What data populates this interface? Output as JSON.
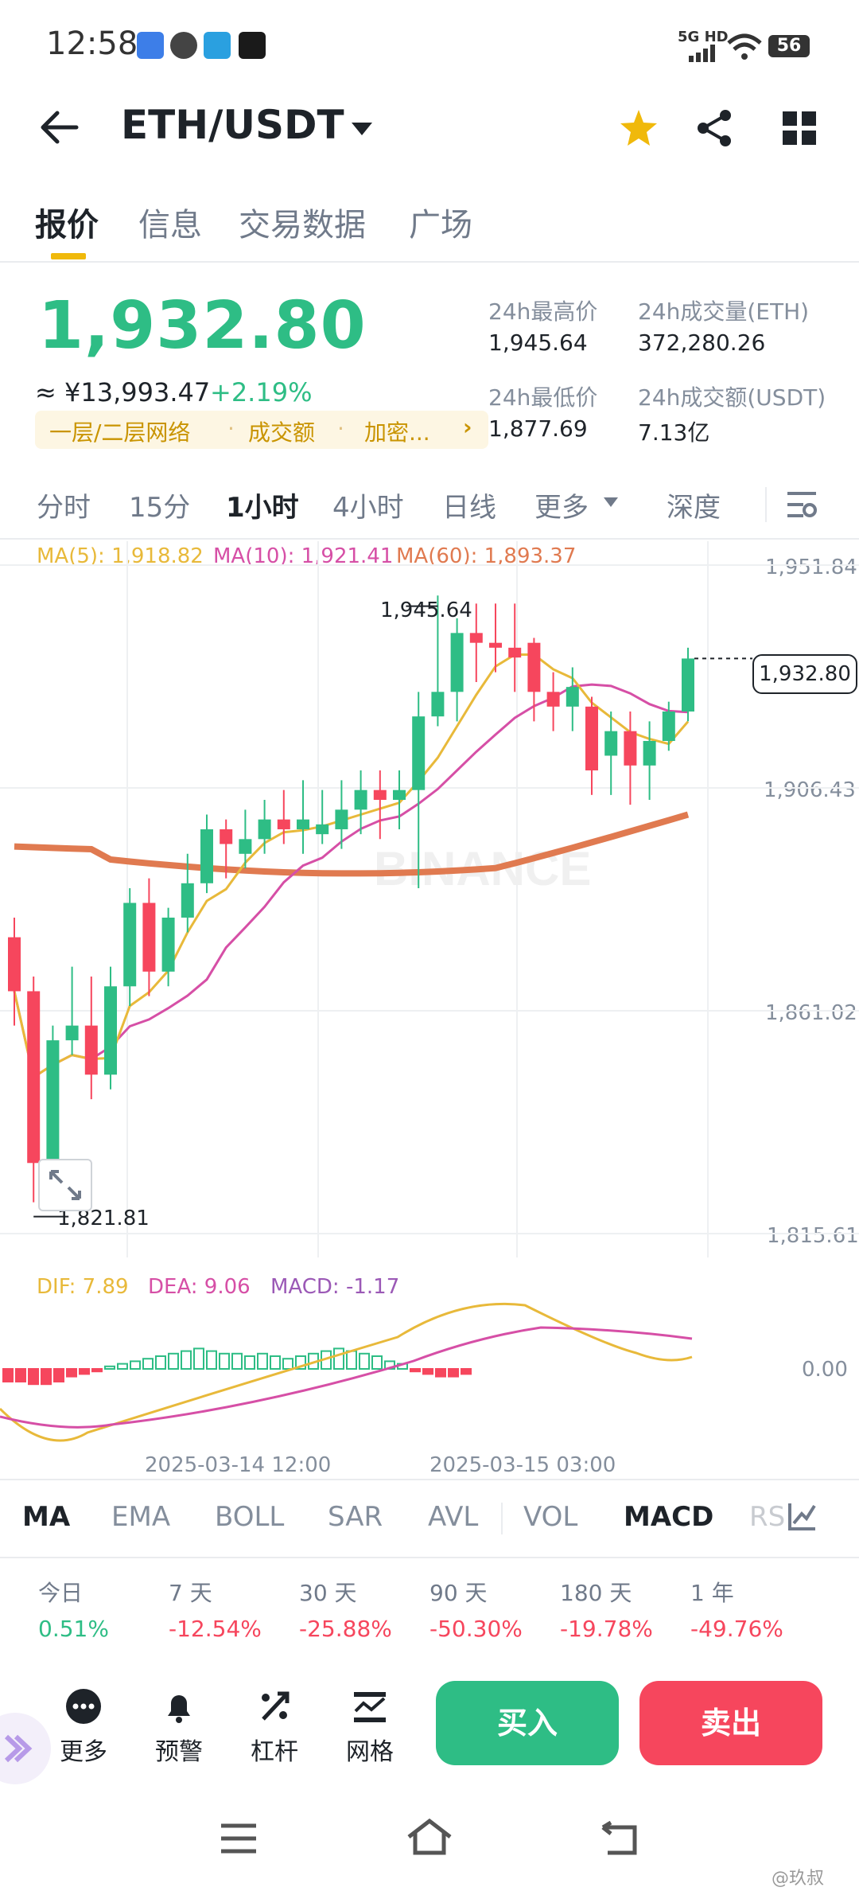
{
  "status_bar": {
    "time": "12:58",
    "network": "5G HD",
    "battery": "56"
  },
  "header": {
    "pair": "ETH/USDT"
  },
  "tabs": [
    "报价",
    "信息",
    "交易数据",
    "广场"
  ],
  "ticker": {
    "price": "1,932.80",
    "cny": "≈ ¥13,993.47",
    "change": "+2.19%",
    "tags": [
      "一层/二层网络",
      "成交额",
      "加密..."
    ],
    "high_label": "24h最高价",
    "high": "1,945.64",
    "low_label": "24h最低价",
    "low": "1,877.69",
    "vol_label": "24h成交量(ETH)",
    "vol": "372,280.26",
    "amount_label": "24h成交额(USDT)",
    "amount": "7.13亿"
  },
  "intervals": [
    "分时",
    "15分",
    "1小时",
    "4小时",
    "日线",
    "更多",
    "深度"
  ],
  "ma_legend": {
    "ma5": "MA(5): 1,918.82",
    "ma10": "MA(10): 1,921.41",
    "ma60": "MA(60): 1,893.37"
  },
  "colors": {
    "up": "#2ebd85",
    "down": "#f6465d",
    "ma5": "#e8b93a",
    "ma10": "#d64fa6",
    "ma60": "#e07a50",
    "accent": "#f0b90b"
  },
  "chart_data": {
    "type": "candlestick",
    "y_ticks": [
      "1,951.84",
      "1,906.43",
      "1,861.02",
      "1,815.61"
    ],
    "ylim": [
      1815.61,
      1951.84
    ],
    "x_ticks": [
      "2025-03-14 12:00",
      "2025-03-15 03:00"
    ],
    "high_marker": "1,945.64",
    "low_marker": "1,821.81",
    "last_price": "1,932.80",
    "candles": [
      {
        "o": 1876,
        "h": 1880,
        "l": 1858,
        "c": 1865
      },
      {
        "o": 1865,
        "h": 1868,
        "l": 1822,
        "c": 1830
      },
      {
        "o": 1830,
        "h": 1858,
        "l": 1826,
        "c": 1855
      },
      {
        "o": 1855,
        "h": 1870,
        "l": 1852,
        "c": 1858
      },
      {
        "o": 1858,
        "h": 1868,
        "l": 1843,
        "c": 1848
      },
      {
        "o": 1848,
        "h": 1870,
        "l": 1845,
        "c": 1866
      },
      {
        "o": 1866,
        "h": 1886,
        "l": 1862,
        "c": 1883
      },
      {
        "o": 1883,
        "h": 1888,
        "l": 1864,
        "c": 1869
      },
      {
        "o": 1869,
        "h": 1882,
        "l": 1866,
        "c": 1880
      },
      {
        "o": 1880,
        "h": 1893,
        "l": 1877,
        "c": 1887
      },
      {
        "o": 1887,
        "h": 1901,
        "l": 1885,
        "c": 1898
      },
      {
        "o": 1898,
        "h": 1900,
        "l": 1888,
        "c": 1895
      },
      {
        "o": 1893,
        "h": 1902,
        "l": 1890,
        "c": 1896
      },
      {
        "o": 1896,
        "h": 1904,
        "l": 1893,
        "c": 1900
      },
      {
        "o": 1900,
        "h": 1906,
        "l": 1895,
        "c": 1898
      },
      {
        "o": 1898,
        "h": 1908,
        "l": 1893,
        "c": 1900
      },
      {
        "o": 1897,
        "h": 1906,
        "l": 1895,
        "c": 1899
      },
      {
        "o": 1898,
        "h": 1908,
        "l": 1894,
        "c": 1902
      },
      {
        "o": 1902,
        "h": 1910,
        "l": 1897,
        "c": 1906
      },
      {
        "o": 1906,
        "h": 1910,
        "l": 1896,
        "c": 1904
      },
      {
        "o": 1904,
        "h": 1910,
        "l": 1898,
        "c": 1906
      },
      {
        "o": 1906,
        "h": 1926,
        "l": 1886,
        "c": 1921
      },
      {
        "o": 1921,
        "h": 1945.64,
        "l": 1919,
        "c": 1926
      },
      {
        "o": 1926,
        "h": 1941,
        "l": 1920,
        "c": 1938
      },
      {
        "o": 1938,
        "h": 1944,
        "l": 1928,
        "c": 1936
      },
      {
        "o": 1936,
        "h": 1944,
        "l": 1930,
        "c": 1935
      },
      {
        "o": 1935,
        "h": 1944,
        "l": 1926,
        "c": 1933
      },
      {
        "o": 1936,
        "h": 1937,
        "l": 1920,
        "c": 1926
      },
      {
        "o": 1926,
        "h": 1930,
        "l": 1918,
        "c": 1923
      },
      {
        "o": 1923,
        "h": 1931,
        "l": 1918,
        "c": 1927
      },
      {
        "o": 1923,
        "h": 1925,
        "l": 1905,
        "c": 1910
      },
      {
        "o": 1913,
        "h": 1922,
        "l": 1905,
        "c": 1918
      },
      {
        "o": 1918,
        "h": 1922,
        "l": 1903,
        "c": 1911
      },
      {
        "o": 1911,
        "h": 1920,
        "l": 1904,
        "c": 1916
      },
      {
        "o": 1916,
        "h": 1924,
        "l": 1914,
        "c": 1922
      },
      {
        "o": 1922,
        "h": 1935,
        "l": 1920,
        "c": 1932.8
      }
    ]
  },
  "macd": {
    "dif": "DIF: 7.89",
    "dea": "DEA: 9.06",
    "macd": "MACD: -1.17",
    "zero": "0.00"
  },
  "indicator_tabs": [
    "MA",
    "EMA",
    "BOLL",
    "SAR",
    "AVL",
    "VOL",
    "MACD",
    "RS"
  ],
  "performance": [
    {
      "label": "今日",
      "value": "0.51%"
    },
    {
      "label": "7 天",
      "value": "-12.54%"
    },
    {
      "label": "30 天",
      "value": "-25.88%"
    },
    {
      "label": "90 天",
      "value": "-50.30%"
    },
    {
      "label": "180 天",
      "value": "-19.78%"
    },
    {
      "label": "1 年",
      "value": "-49.76%"
    }
  ],
  "toolbar": {
    "more": "更多",
    "alert": "预警",
    "leverage": "杠杆",
    "grid": "网格",
    "buy": "买入",
    "sell": "卖出"
  },
  "watermark": "BINANCE",
  "credit": "@玖叔"
}
